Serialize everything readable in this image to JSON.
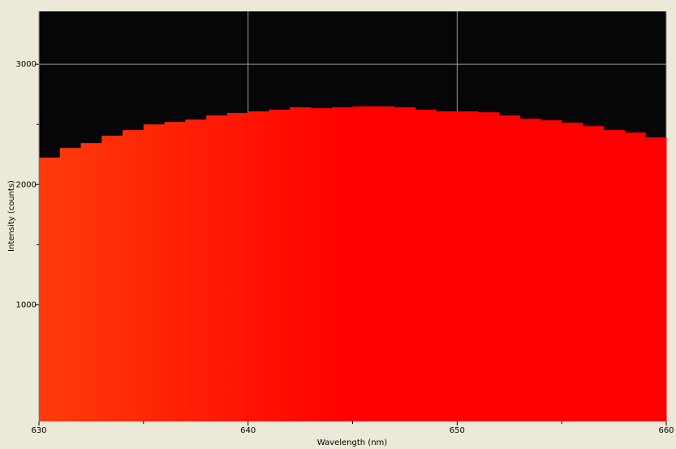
{
  "chart_data": {
    "type": "histogram",
    "x_label": "Wavelength (nm)",
    "y_label": "Intensity (counts)",
    "bins": [
      630,
      631,
      632,
      633,
      634,
      635,
      636,
      637,
      638,
      639,
      640,
      641,
      642,
      643,
      644,
      645,
      646,
      647,
      648,
      649,
      650,
      651,
      652,
      653,
      654,
      655,
      656,
      657,
      658,
      659,
      660
    ],
    "values": [
      2223,
      2304,
      2345,
      2405,
      2453,
      2500,
      2520,
      2540,
      2574,
      2595,
      2608,
      2622,
      2642,
      2635,
      2642,
      2649,
      2649,
      2642,
      2622,
      2608,
      2608,
      2601,
      2574,
      2547,
      2534,
      2514,
      2486,
      2453,
      2432,
      2392
    ],
    "color_stops": [
      "#ff3c0a",
      "#ff0000"
    ],
    "xlim": [
      630,
      660
    ],
    "ylim": [
      30,
      3440
    ],
    "xticks": [
      630,
      640,
      650,
      660
    ],
    "yticks": [
      1000,
      2000,
      3000
    ],
    "minor_xticks": [
      635,
      645,
      655
    ],
    "minor_yticks": [
      1500,
      2500
    ],
    "grid": true
  }
}
